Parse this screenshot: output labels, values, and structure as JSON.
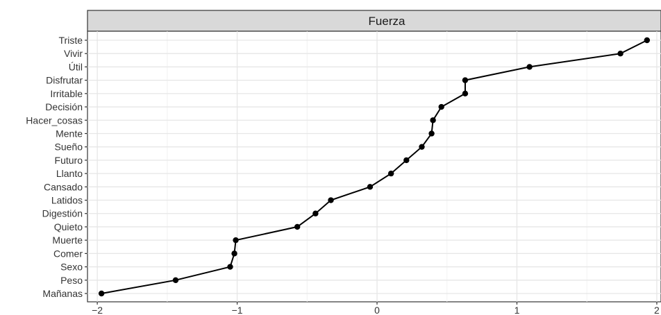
{
  "chart_data": {
    "type": "line",
    "panel_title": "Fuerza",
    "xlabel": "",
    "ylabel": "",
    "xlim": [
      -2.07,
      2.03
    ],
    "x_ticks": [
      -2,
      -1,
      0,
      1,
      2
    ],
    "x_tick_labels": [
      "−2",
      "−1",
      "0",
      "1",
      "2"
    ],
    "grid": true,
    "categories": [
      "Mañanas",
      "Peso",
      "Sexo",
      "Comer",
      "Muerte",
      "Quieto",
      "Digestión",
      "Latidos",
      "Cansado",
      "Llanto",
      "Futuro",
      "Sueño",
      "Mente",
      "Hacer_cosas",
      "Decisión",
      "Irritable",
      "Disfrutar",
      "Útil",
      "Vivir",
      "Triste"
    ],
    "series": [
      {
        "values": [
          -1.97,
          -1.44,
          -1.05,
          -1.02,
          -1.01,
          -0.57,
          -0.44,
          -0.33,
          -0.05,
          0.1,
          0.21,
          0.32,
          0.39,
          0.4,
          0.46,
          0.63,
          0.63,
          1.09,
          1.74,
          1.93
        ]
      }
    ]
  }
}
